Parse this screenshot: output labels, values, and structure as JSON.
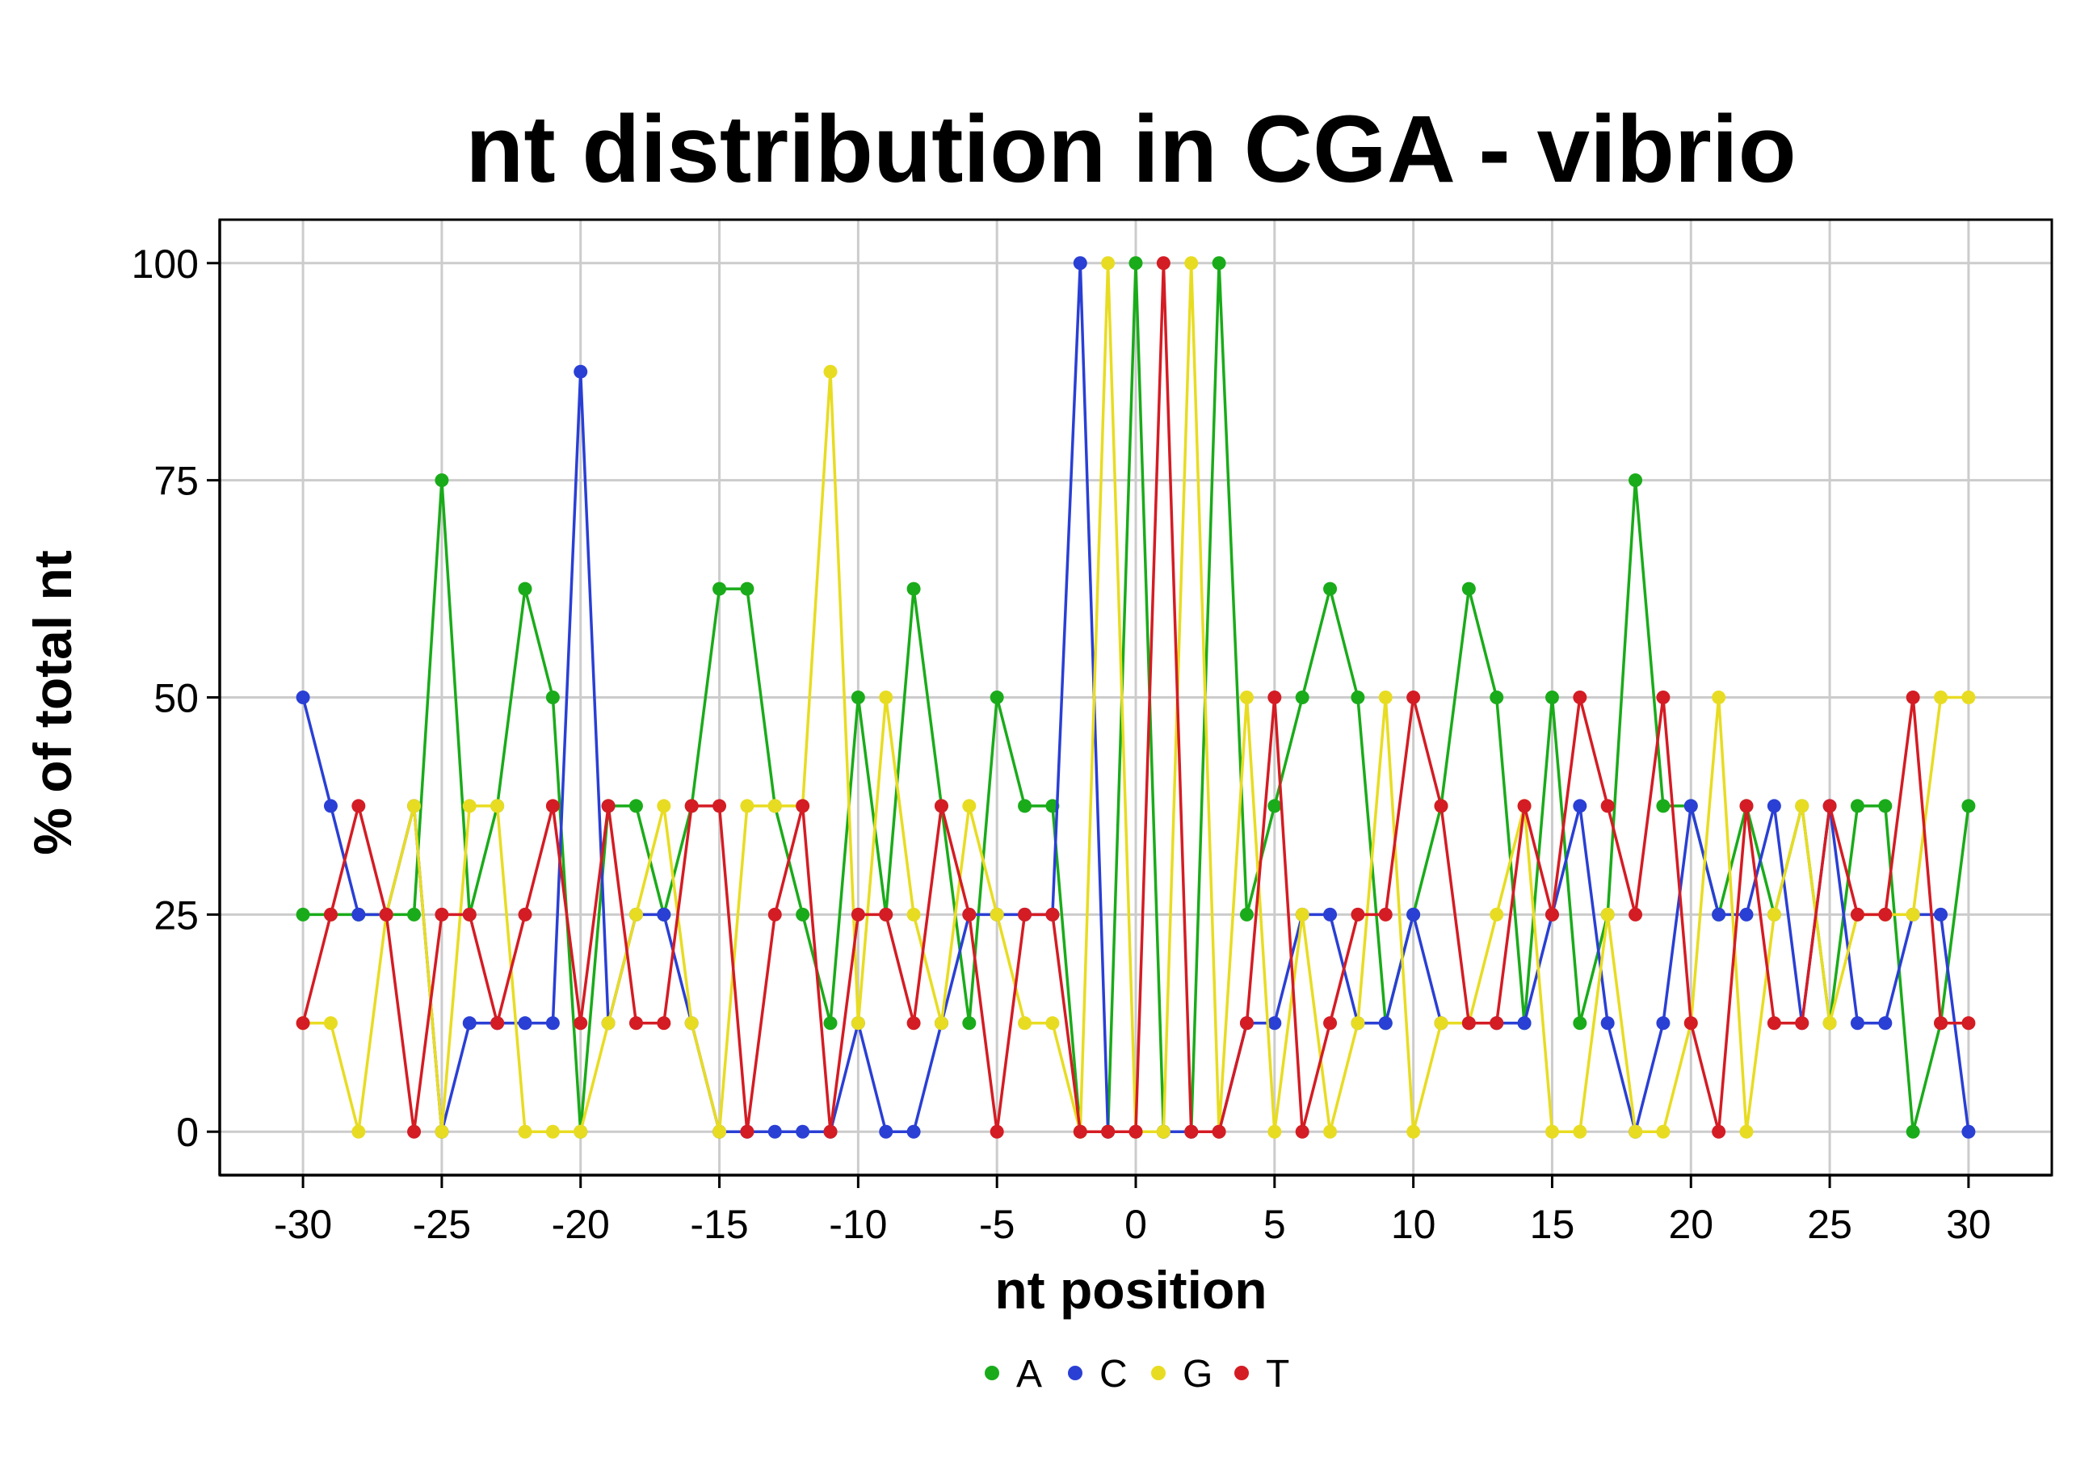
{
  "chart_data": {
    "type": "line",
    "title": "nt distribution in CGA - vibrio",
    "xlabel": "nt position",
    "ylabel": "% of total nt",
    "xlim": [
      -33,
      33
    ],
    "ylim": [
      -5,
      105
    ],
    "xticks": [
      -30,
      -25,
      -20,
      -15,
      -10,
      -5,
      0,
      5,
      10,
      15,
      20,
      25,
      30
    ],
    "yticks": [
      0,
      25,
      50,
      75,
      100
    ],
    "grid": true,
    "legend_position": "bottom",
    "x": [
      -30,
      -29,
      -28,
      -27,
      -26,
      -25,
      -24,
      -23,
      -22,
      -21,
      -20,
      -19,
      -18,
      -17,
      -16,
      -15,
      -14,
      -13,
      -12,
      -11,
      -10,
      -9,
      -8,
      -7,
      -6,
      -5,
      -4,
      -3,
      -2,
      -1,
      0,
      1,
      2,
      3,
      4,
      5,
      6,
      7,
      8,
      9,
      10,
      11,
      12,
      13,
      14,
      15,
      16,
      17,
      18,
      19,
      20,
      21,
      22,
      23,
      24,
      25,
      26,
      27,
      28,
      29,
      30
    ],
    "series": [
      {
        "name": "A",
        "color": "#1aab1a",
        "values": [
          25,
          25,
          25,
          25,
          25,
          75,
          25,
          37.5,
          62.5,
          50,
          0,
          37.5,
          37.5,
          25,
          37.5,
          62.5,
          62.5,
          37.5,
          25,
          12.5,
          50,
          25,
          62.5,
          37.5,
          12.5,
          50,
          37.5,
          37.5,
          0,
          0,
          100,
          0,
          0,
          100,
          25,
          37.5,
          50,
          62.5,
          50,
          12.5,
          25,
          37.5,
          62.5,
          50,
          12.5,
          50,
          12.5,
          25,
          75,
          37.5,
          37.5,
          25,
          37.5,
          25,
          37.5,
          12.5,
          37.5,
          37.5,
          0,
          12.5,
          37.5
        ]
      },
      {
        "name": "C",
        "color": "#2a3fd4",
        "values": [
          50,
          37.5,
          25,
          25,
          37.5,
          0,
          12.5,
          12.5,
          12.5,
          12.5,
          87.5,
          12.5,
          25,
          25,
          12.5,
          0,
          0,
          0,
          0,
          0,
          12.5,
          0,
          0,
          12.5,
          25,
          25,
          25,
          25,
          100,
          0,
          0,
          0,
          0,
          0,
          12.5,
          12.5,
          25,
          25,
          12.5,
          12.5,
          25,
          12.5,
          12.5,
          12.5,
          12.5,
          25,
          37.5,
          12.5,
          0,
          12.5,
          37.5,
          25,
          25,
          37.5,
          12.5,
          37.5,
          12.5,
          12.5,
          25,
          25,
          0
        ]
      },
      {
        "name": "G",
        "color": "#e8dc22",
        "values": [
          12.5,
          12.5,
          0,
          25,
          37.5,
          0,
          37.5,
          37.5,
          0,
          0,
          0,
          12.5,
          25,
          37.5,
          12.5,
          0,
          37.5,
          37.5,
          37.5,
          87.5,
          12.5,
          50,
          25,
          12.5,
          37.5,
          25,
          12.5,
          12.5,
          0,
          100,
          0,
          0,
          100,
          0,
          50,
          0,
          25,
          0,
          12.5,
          50,
          0,
          12.5,
          12.5,
          25,
          37.5,
          0,
          0,
          25,
          0,
          0,
          12.5,
          50,
          0,
          25,
          37.5,
          12.5,
          25,
          25,
          25,
          50,
          50
        ]
      },
      {
        "name": "T",
        "color": "#d41c24",
        "values": [
          12.5,
          25,
          37.5,
          25,
          0,
          25,
          25,
          12.5,
          25,
          37.5,
          12.5,
          37.5,
          12.5,
          12.5,
          37.5,
          37.5,
          0,
          25,
          37.5,
          0,
          25,
          25,
          12.5,
          37.5,
          25,
          0,
          25,
          25,
          0,
          0,
          0,
          100,
          0,
          0,
          12.5,
          50,
          0,
          12.5,
          25,
          25,
          50,
          37.5,
          12.5,
          12.5,
          37.5,
          25,
          50,
          37.5,
          25,
          50,
          12.5,
          0,
          37.5,
          12.5,
          12.5,
          37.5,
          25,
          25,
          50,
          12.5,
          12.5
        ]
      }
    ]
  }
}
